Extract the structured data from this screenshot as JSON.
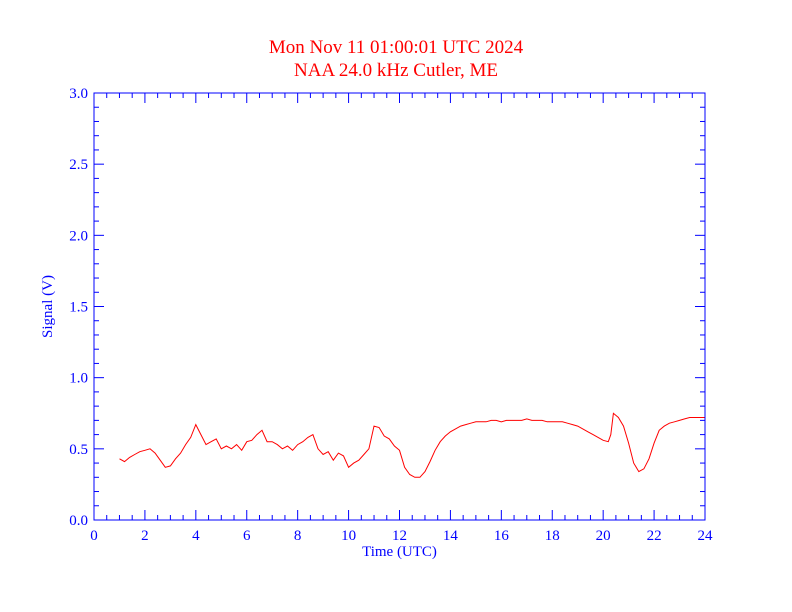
{
  "colors": {
    "axis": "#0000ff",
    "series": "#ff0000",
    "title": "#ff0000",
    "background": "#ffffff"
  },
  "chart_data": {
    "type": "line",
    "title": "Mon Nov 11 01:00:01 UTC 2024",
    "subtitle": "NAA 24.0 kHz Cutler, ME",
    "xlabel": "Time (UTC)",
    "ylabel": "Signal (V)",
    "xlim": [
      0,
      24
    ],
    "ylim": [
      0.0,
      3.0
    ],
    "xticks": [
      0,
      2,
      4,
      6,
      8,
      10,
      12,
      14,
      16,
      18,
      20,
      22,
      24
    ],
    "xtick_labels": [
      "0",
      "2",
      "4",
      "6",
      "8",
      "10",
      "12",
      "14",
      "16",
      "18",
      "20",
      "22",
      "24"
    ],
    "yticks": [
      0.0,
      0.5,
      1.0,
      1.5,
      2.0,
      2.5,
      3.0
    ],
    "ytick_labels": [
      "0.0",
      "0.5",
      "1.0",
      "1.5",
      "2.0",
      "2.5",
      "3.0"
    ],
    "grid": false,
    "series": [
      {
        "x": [
          1.0,
          1.2,
          1.4,
          1.6,
          1.8,
          2.0,
          2.2,
          2.4,
          2.6,
          2.8,
          3.0,
          3.2,
          3.4,
          3.6,
          3.8,
          4.0,
          4.2,
          4.4,
          4.6,
          4.8,
          5.0,
          5.2,
          5.4,
          5.6,
          5.8,
          6.0,
          6.2,
          6.4,
          6.6,
          6.8,
          7.0,
          7.2,
          7.4,
          7.6,
          7.8,
          8.0,
          8.2,
          8.4,
          8.6,
          8.8,
          9.0,
          9.2,
          9.4,
          9.6,
          9.8,
          10.0,
          10.2,
          10.4,
          10.6,
          10.8,
          11.0,
          11.2,
          11.4,
          11.6,
          11.8,
          12.0,
          12.2,
          12.4,
          12.6,
          12.8,
          13.0,
          13.2,
          13.4,
          13.6,
          13.8,
          14.0,
          14.2,
          14.4,
          14.6,
          14.8,
          15.0,
          15.2,
          15.4,
          15.6,
          15.8,
          16.0,
          16.2,
          16.4,
          16.6,
          16.8,
          17.0,
          17.2,
          17.4,
          17.6,
          17.8,
          18.0,
          18.2,
          18.4,
          18.6,
          18.8,
          19.0,
          19.2,
          19.4,
          19.6,
          19.8,
          20.0,
          20.2,
          20.3,
          20.4,
          20.6,
          20.8,
          21.0,
          21.2,
          21.4,
          21.6,
          21.8,
          22.0,
          22.2,
          22.4,
          22.6,
          22.8,
          23.0,
          23.2,
          23.4,
          23.6,
          23.8,
          24.0
        ],
        "y": [
          0.43,
          0.41,
          0.44,
          0.46,
          0.48,
          0.49,
          0.5,
          0.47,
          0.42,
          0.37,
          0.38,
          0.43,
          0.47,
          0.53,
          0.58,
          0.67,
          0.6,
          0.53,
          0.55,
          0.57,
          0.5,
          0.52,
          0.5,
          0.53,
          0.49,
          0.55,
          0.56,
          0.6,
          0.63,
          0.55,
          0.55,
          0.53,
          0.5,
          0.52,
          0.49,
          0.53,
          0.55,
          0.58,
          0.6,
          0.5,
          0.46,
          0.48,
          0.42,
          0.47,
          0.45,
          0.37,
          0.4,
          0.42,
          0.46,
          0.5,
          0.66,
          0.65,
          0.59,
          0.57,
          0.52,
          0.49,
          0.37,
          0.32,
          0.3,
          0.3,
          0.34,
          0.41,
          0.49,
          0.55,
          0.59,
          0.62,
          0.64,
          0.66,
          0.67,
          0.68,
          0.69,
          0.69,
          0.69,
          0.7,
          0.7,
          0.69,
          0.7,
          0.7,
          0.7,
          0.7,
          0.71,
          0.7,
          0.7,
          0.7,
          0.69,
          0.69,
          0.69,
          0.69,
          0.68,
          0.67,
          0.66,
          0.64,
          0.62,
          0.6,
          0.58,
          0.56,
          0.55,
          0.6,
          0.75,
          0.72,
          0.66,
          0.54,
          0.4,
          0.34,
          0.36,
          0.43,
          0.54,
          0.63,
          0.66,
          0.68,
          0.69,
          0.7,
          0.71,
          0.72,
          0.72,
          0.72,
          0.72
        ]
      }
    ]
  }
}
